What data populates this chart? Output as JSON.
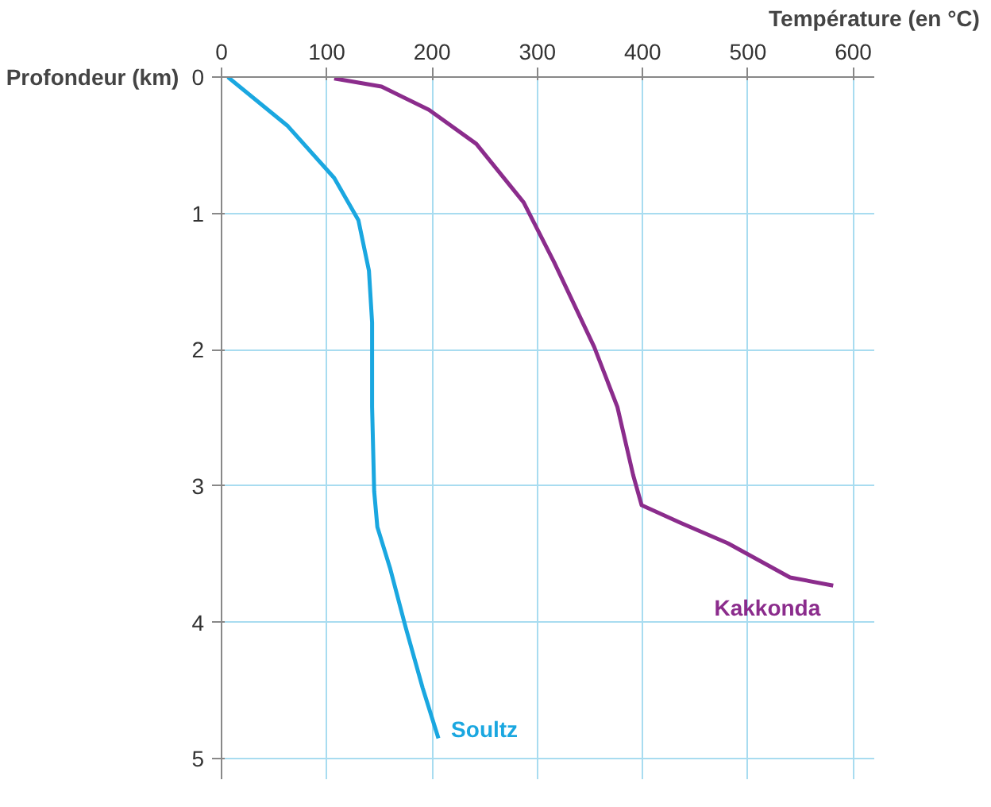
{
  "chart_data": {
    "type": "line",
    "xlabel": "Température (en °C)",
    "ylabel": "Profondeur (km)",
    "xlim": [
      0,
      620
    ],
    "ylim": [
      5.15,
      0
    ],
    "xticks": [
      0,
      100,
      200,
      300,
      400,
      500,
      600
    ],
    "yticks": [
      0,
      1,
      2,
      3,
      4,
      5
    ],
    "grid": true,
    "marker": "none",
    "line_style": "solid",
    "series": [
      {
        "name": "Soultz",
        "color": "#1aa7e0",
        "x": [
          6,
          63,
          107,
          130,
          140,
          143,
          143,
          145,
          148,
          160,
          175,
          191,
          206
        ],
        "values": [
          0,
          0.36,
          0.74,
          1.05,
          1.42,
          1.8,
          2.42,
          3.04,
          3.3,
          3.6,
          4.04,
          4.48,
          4.85
        ]
      },
      {
        "name": "Kakkonda",
        "color": "#8b2c8c",
        "x": [
          107,
          152,
          197,
          242,
          287,
          316,
          354,
          376,
          391,
          399,
          436,
          481,
          540,
          581
        ],
        "values": [
          0.01,
          0.07,
          0.24,
          0.49,
          0.92,
          1.36,
          1.98,
          2.42,
          2.92,
          3.14,
          3.27,
          3.42,
          3.67,
          3.73
        ]
      }
    ]
  }
}
